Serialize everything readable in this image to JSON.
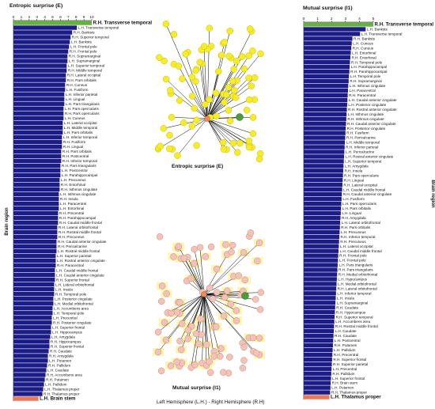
{
  "colors": {
    "bar": "#1c1c86",
    "first_bar": "#67b045",
    "last_bar": "#e87a5a",
    "node_yellow": "#f5ec2a",
    "node_pink": "#f3c2b8",
    "node_green": "#4e9a3c",
    "node_hub": "#f08a5b",
    "highlight": "#fbf5a5"
  },
  "chart_data": [
    {
      "type": "bar",
      "orientation": "horizontal",
      "title": "Entropic surprise (E)",
      "ylabel": "Brain region",
      "xlim": [
        0,
        10
      ],
      "xticks": [
        "0",
        "1",
        "2",
        "3",
        "4",
        "5",
        "6",
        "7",
        "8",
        "9",
        "10"
      ],
      "categories": [
        "R.H. Transverse temporal",
        "L.H. Transverse temporal",
        "R.H. Banksts",
        "R.H. Superior temporal",
        "L.H. Banksts",
        "L.H. Frontal pole",
        "R.H. Frontal pole",
        "R.H. Supramarginal",
        "L.H. Supramarginal",
        "L.H. Superior temporal",
        "R.H. Middle temporal",
        "R.H. Lateral occipital",
        "R.H. Pars orbitalis",
        "R.H. Cuneus",
        "L.H. Fusiform",
        "L.H. Inferior parietal",
        "L.H. Lingual",
        "L.H. Pars triangularis",
        "L.H. Pars opercularis",
        "R.H. Pars opercularis",
        "L.H. Cuneus",
        "L.H. Lateral occipital",
        "L.H. Middle temporal",
        "L.H. Pars orbitalis",
        "L.H. Inferior temporal",
        "R.H. Fusiform",
        "R.H. Lingual",
        "R.H. Pars orbitalis",
        "R.H. Postcentral",
        "R.H. Inferior temporal",
        "R.H. Pars triangularis",
        "L.H. Postcentral",
        "L.H. Parahippocampal",
        "L.H. Precuneus",
        "R.H. Entorhinal",
        "R.H. Isthmus cingulate",
        "L.H. Isthmus cingulate",
        "R.H. Insula",
        "L.H. Paracentral",
        "L.H. Entorhinal",
        "R.H. Precentral",
        "R.H. Parahippocampal",
        "R.H. Caudal middle frontal",
        "R.H. Lateral orbitofrontal",
        "R.H. Rostral middle frontal",
        "R.H. Precuneus",
        "R.H. Caudal anterior cingulate",
        "R.H. Pericalcarine",
        "L.H. Rostral middle frontal",
        "L.H. Superior parietal",
        "L.H. Rostral anterior cingulate",
        "R.H. Paracentral",
        "L.H. Caudal middle frontal",
        "L.H. Caudal anterior cingulate",
        "R.H. Superior frontal",
        "L.H. Lateral orbitofrontal",
        "L.H. Insula",
        "R.H. Temporal pole",
        "L.H. Posterior cingulate",
        "L.H. Medial orbitofrontal",
        "L.H. Accumbens area",
        "L.H. Temporal pole",
        "L.H. Precentral",
        "R.H. Posterior cingulate",
        "L.H. Superior frontal",
        "L.H. Hippocampus",
        "L.H. Amygdala",
        "R.H. Hippocampus",
        "R.H. Superior frontal",
        "R.H. Caudate",
        "R.H. Amygdala",
        "L.H. Putamen",
        "R.H. Pallidum",
        "L.H. Caudate",
        "R.H. Accumbens area",
        "R.H. Putamen",
        "L.H. Pallidum",
        "L.H. Thalamus proper",
        "R.H. Thalamus proper",
        "L.H. Brain stem"
      ],
      "values": [
        10.0,
        8.1,
        7.5,
        7.3,
        7.2,
        7.1,
        7.0,
        6.9,
        6.9,
        6.8,
        6.8,
        6.7,
        6.7,
        6.6,
        6.6,
        6.5,
        6.5,
        6.5,
        6.4,
        6.4,
        6.4,
        6.3,
        6.3,
        6.3,
        6.2,
        6.2,
        6.2,
        6.1,
        6.1,
        6.1,
        6.0,
        6.0,
        6.0,
        5.9,
        5.9,
        5.9,
        5.8,
        5.8,
        5.8,
        5.8,
        5.7,
        5.7,
        5.7,
        5.6,
        5.6,
        5.6,
        5.5,
        5.5,
        5.5,
        5.4,
        5.4,
        5.4,
        5.3,
        5.3,
        5.3,
        5.2,
        5.2,
        5.2,
        5.1,
        5.1,
        5.0,
        5.0,
        4.9,
        4.9,
        4.8,
        4.8,
        4.7,
        4.6,
        4.6,
        4.5,
        4.4,
        4.4,
        4.3,
        4.2,
        4.1,
        4.0,
        3.9,
        3.8,
        3.7,
        3.2
      ]
    },
    {
      "type": "bar",
      "orientation": "horizontal",
      "title": "Mutual surprise (I1)",
      "ylabel": "Brain region",
      "xlim": [
        0,
        5
      ],
      "xticks": [
        "0",
        "1",
        "2",
        "3",
        "4",
        "5"
      ],
      "categories": [
        "R.H. Transverse temporal",
        "L.H. Banksts",
        "L.H. Transverse temporal",
        "R.H. Banksts",
        "L.H. Cuneus",
        "R.H. Cuneus",
        "L.H. Entorhinal",
        "R.H. Entorhinal",
        "R.H. Temporal pole",
        "L.H. Parahippocampal",
        "R.H. Parahippocampal",
        "L.H. Temporal pole",
        "R.H. Supramarginal",
        "L.H. Isthmus cingulate",
        "L.H. Paracentral",
        "R.H. Paracentral",
        "L.H. Caudal anterior cingulate",
        "L.H. Posterior cingulate",
        "R.H. Rostral anterior cingulate",
        "L.H. Isthmus cingulate",
        "R.H. Isthmus cingulate",
        "R.H. Caudal anterior cingulate",
        "R.H. Posterior cingulate",
        "R.H. Fusiform",
        "R.H. Pericalcarine",
        "L.H. Middle temporal",
        "R.H. Inferior parietal",
        "L.H. Pericalcarine",
        "L.H. Rostral anterior cingulate",
        "L.H. Superior temporal",
        "L.H. Amygdala",
        "R.H. Insula",
        "R.H. Pars opercularis",
        "R.H. Lingual",
        "R.H. Lateral occipital",
        "L.H. Caudal middle frontal",
        "R.H. Caudal anterior cingulate",
        "L.H. Fusiform",
        "L.H. Pars opercularis",
        "L.H. Pars orbitalis",
        "L.H. Lingual",
        "R.H. Amygdala",
        "L.H. Lateral orbitofrontal",
        "R.H. Pars orbitalis",
        "L.H. Precuneus",
        "R.H. Inferior temporal",
        "R.H. Precuneus",
        "L.H. Lateral occipital",
        "L.H. Caudal middle frontal",
        "R.H. Frontal pole",
        "L.H. Frontal pole",
        "L.H. Pars triangularis",
        "R.H. Pars triangularis",
        "R.H. Medial orbitofrontal",
        "L.H. Hypocampus",
        "L.H. Medial orbitofrontal",
        "R.H. Lateral orbitofrontal",
        "L.H. Inferior temporal",
        "L.H. Insula",
        "L.H. Supramarginal",
        "R.H. Caudate",
        "R.H. Hypocampus",
        "R.H. Superior temporal",
        "L.H. Accumbens area",
        "R.H. Rostral middle frontal",
        "L.H. Caudate",
        "R.H. Caudate",
        "L.H. Postcentral",
        "R.H. Putamen",
        "L.H. Pallidum",
        "R.H. Precentral",
        "R.H. Superior frontal",
        "R.H. Superior parietal",
        "L.H. Precentral",
        "R.H. Pallidum",
        "L.H. Superior frontal",
        "R.H. Brain stem",
        "L.H. Putamen",
        "R.H. Thalamus proper",
        "L.H. Thalamus proper"
      ],
      "values": [
        5.0,
        4.45,
        4.05,
        3.5,
        3.45,
        3.42,
        3.38,
        3.35,
        3.32,
        3.3,
        3.28,
        3.25,
        3.23,
        3.2,
        3.18,
        3.16,
        3.14,
        3.12,
        3.1,
        3.08,
        3.06,
        3.04,
        3.02,
        3.0,
        2.98,
        2.96,
        2.94,
        2.92,
        2.9,
        2.88,
        2.86,
        2.84,
        2.82,
        2.8,
        2.78,
        2.76,
        2.74,
        2.72,
        2.7,
        2.68,
        2.66,
        2.64,
        2.62,
        2.6,
        2.58,
        2.56,
        2.54,
        2.52,
        2.5,
        2.48,
        2.46,
        2.44,
        2.42,
        2.4,
        2.38,
        2.36,
        2.34,
        2.32,
        2.3,
        2.28,
        2.26,
        2.24,
        2.22,
        2.2,
        2.18,
        2.16,
        2.14,
        2.12,
        2.1,
        2.08,
        2.06,
        2.04,
        2.02,
        2.0,
        1.98,
        1.96,
        1.94,
        1.92,
        1.9,
        1.85
      ]
    }
  ],
  "networks": {
    "top_title": "Entropic surprise (E)",
    "bottom_title": "Mutual surprise (I1)",
    "footer": "Left Hemisphere (L.H.) - Right Hemisphere (R.H)"
  }
}
